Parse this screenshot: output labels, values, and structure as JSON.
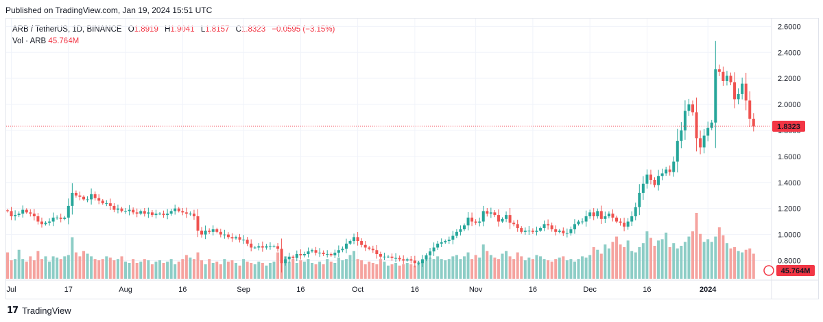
{
  "header": {
    "published": "Published on TradingView.com, Jan 19, 2024 15:51 UTC"
  },
  "legend": {
    "symbol": "ARB / TetherUS, 1D, BINANCE",
    "open_label": "O",
    "open": "1.8919",
    "high_label": "H",
    "high": "1.9041",
    "low_label": "L",
    "low": "1.8157",
    "close_label": "C",
    "close": "1.8323",
    "change": "−0.0595 (−3.15%)",
    "vol_label": "Vol · ARB",
    "vol_value": "45.764M"
  },
  "footer": {
    "brand": "TradingView"
  },
  "colors": {
    "up": "#26a69a",
    "down": "#ef5350",
    "up_vol": "#8dcdc6",
    "down_vol": "#f5a39f",
    "price_line": "#f23645"
  },
  "chart_data": {
    "type": "candlestick",
    "title": "ARB / TetherUS, 1D, BINANCE",
    "y_ticks": [
      "0.8000",
      "1.0000",
      "1.2000",
      "1.4000",
      "1.6000",
      "1.8000",
      "2.0000",
      "2.2000",
      "2.4000",
      "2.6000"
    ],
    "ylim": [
      0.66,
      2.66
    ],
    "x_ticks": [
      {
        "label": "Jul",
        "bar": 1
      },
      {
        "label": "17",
        "bar": 16
      },
      {
        "label": "Aug",
        "bar": 31
      },
      {
        "label": "16",
        "bar": 46
      },
      {
        "label": "Sep",
        "bar": 62
      },
      {
        "label": "16",
        "bar": 77
      },
      {
        "label": "Oct",
        "bar": 92
      },
      {
        "label": "16",
        "bar": 107
      },
      {
        "label": "Nov",
        "bar": 123
      },
      {
        "label": "16",
        "bar": 138
      },
      {
        "label": "Dec",
        "bar": 153
      },
      {
        "label": "16",
        "bar": 168
      },
      {
        "label": "2024",
        "bar": 184
      }
    ],
    "last_price": "1.8323",
    "last_volume": "45.764M",
    "close": [
      1.18,
      1.14,
      1.15,
      1.16,
      1.19,
      1.17,
      1.16,
      1.14,
      1.1,
      1.08,
      1.09,
      1.1,
      1.13,
      1.13,
      1.12,
      1.13,
      1.22,
      1.32,
      1.3,
      1.29,
      1.27,
      1.27,
      1.31,
      1.28,
      1.26,
      1.24,
      1.24,
      1.22,
      1.19,
      1.2,
      1.18,
      1.18,
      1.19,
      1.17,
      1.16,
      1.18,
      1.16,
      1.17,
      1.15,
      1.16,
      1.16,
      1.15,
      1.16,
      1.18,
      1.2,
      1.18,
      1.17,
      1.16,
      1.16,
      1.14,
      1.03,
      1.0,
      1.03,
      1.02,
      1.04,
      1.02,
      1.0,
      1.0,
      0.98,
      0.97,
      0.98,
      0.96,
      0.96,
      0.93,
      0.9,
      0.9,
      0.91,
      0.9,
      0.91,
      0.91,
      0.91,
      0.89,
      0.78,
      0.81,
      0.83,
      0.82,
      0.85,
      0.84,
      0.85,
      0.87,
      0.88,
      0.86,
      0.86,
      0.85,
      0.85,
      0.84,
      0.86,
      0.88,
      0.89,
      0.93,
      0.95,
      0.98,
      0.95,
      0.92,
      0.9,
      0.89,
      0.88,
      0.85,
      0.83,
      0.83,
      0.83,
      0.82,
      0.82,
      0.81,
      0.8,
      0.81,
      0.8,
      0.78,
      0.78,
      0.81,
      0.84,
      0.87,
      0.9,
      0.93,
      0.94,
      0.95,
      0.96,
      0.99,
      1.02,
      1.04,
      1.07,
      1.13,
      1.1,
      1.09,
      1.1,
      1.18,
      1.16,
      1.17,
      1.15,
      1.1,
      1.12,
      1.15,
      1.09,
      1.08,
      1.05,
      1.02,
      1.03,
      1.03,
      1.02,
      1.03,
      1.05,
      1.08,
      1.07,
      1.04,
      1.02,
      1.03,
      1.01,
      1.01,
      1.04,
      1.08,
      1.1,
      1.1,
      1.14,
      1.17,
      1.14,
      1.18,
      1.12,
      1.14,
      1.16,
      1.13,
      1.1,
      1.09,
      1.06,
      1.1,
      1.14,
      1.21,
      1.32,
      1.39,
      1.46,
      1.42,
      1.38,
      1.45,
      1.47,
      1.5,
      1.48,
      1.56,
      1.72,
      1.8,
      1.95,
      2.0,
      1.94,
      1.74,
      1.67,
      1.76,
      1.82,
      1.86,
      2.27,
      2.25,
      2.18,
      2.22,
      2.17,
      2.04,
      2.08,
      2.16,
      2.03,
      1.89,
      1.83
    ],
    "volume": [
      0.4,
      0.28,
      0.3,
      0.44,
      0.3,
      0.26,
      0.34,
      0.28,
      0.42,
      0.3,
      0.34,
      0.26,
      0.34,
      0.32,
      0.3,
      0.34,
      0.36,
      0.63,
      0.4,
      0.34,
      0.42,
      0.38,
      0.34,
      0.3,
      0.28,
      0.3,
      0.34,
      0.32,
      0.28,
      0.3,
      0.34,
      0.26,
      0.24,
      0.3,
      0.24,
      0.26,
      0.3,
      0.28,
      0.22,
      0.26,
      0.28,
      0.24,
      0.26,
      0.3,
      0.22,
      0.26,
      0.3,
      0.36,
      0.32,
      0.3,
      0.4,
      0.28,
      0.22,
      0.3,
      0.24,
      0.26,
      0.22,
      0.3,
      0.26,
      0.28,
      0.24,
      0.2,
      0.3,
      0.26,
      0.24,
      0.22,
      0.26,
      0.24,
      0.2,
      0.24,
      0.26,
      0.4,
      0.28,
      0.34,
      0.26,
      0.3,
      0.24,
      0.28,
      0.26,
      0.3,
      0.24,
      0.22,
      0.26,
      0.22,
      0.3,
      0.26,
      0.24,
      0.32,
      0.28,
      0.3,
      0.36,
      0.42,
      0.3,
      0.28,
      0.22,
      0.26,
      0.24,
      0.22,
      0.3,
      0.26,
      0.2,
      0.22,
      0.24,
      0.2,
      0.22,
      0.24,
      0.22,
      0.2,
      0.26,
      0.28,
      0.3,
      0.32,
      0.3,
      0.34,
      0.3,
      0.28,
      0.3,
      0.34,
      0.36,
      0.3,
      0.34,
      0.4,
      0.3,
      0.36,
      0.32,
      0.52,
      0.42,
      0.36,
      0.32,
      0.3,
      0.38,
      0.42,
      0.34,
      0.3,
      0.4,
      0.34,
      0.28,
      0.32,
      0.3,
      0.36,
      0.34,
      0.3,
      0.28,
      0.26,
      0.3,
      0.32,
      0.34,
      0.28,
      0.3,
      0.26,
      0.3,
      0.34,
      0.32,
      0.36,
      0.48,
      0.44,
      0.38,
      0.52,
      0.46,
      0.56,
      0.64,
      0.52,
      0.48,
      0.58,
      0.42,
      0.4,
      0.48,
      0.54,
      0.72,
      0.62,
      0.5,
      0.58,
      0.6,
      0.7,
      0.48,
      0.54,
      0.46,
      0.5,
      0.56,
      0.64,
      0.72,
      1.0,
      0.68,
      0.56,
      0.6,
      0.56,
      0.64,
      0.78,
      0.66,
      0.54,
      0.46,
      0.48,
      0.42,
      0.4,
      0.44,
      0.46,
      0.38
    ]
  }
}
